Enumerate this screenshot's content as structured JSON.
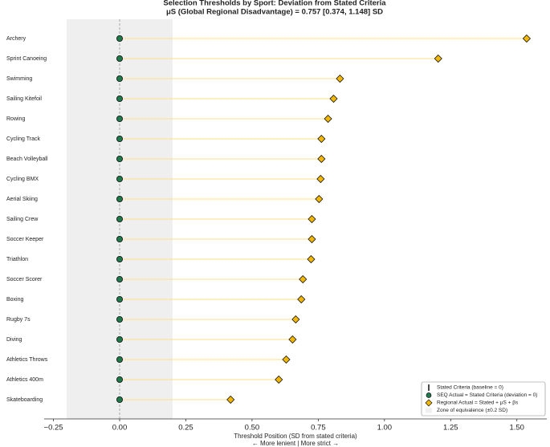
{
  "chart_data": {
    "type": "dot",
    "title": "Selection Thresholds by Sport: Deviation from Stated Criteria",
    "subtitle": "μS (Global Regional Disadvantage) = 0.757 [0.374, 1.148] SD",
    "xlabel": "Threshold Position (SD from stated criteria)",
    "xlabel2": "← More lenient | More strict →",
    "categories": [
      "Archery",
      "Sprint Canoeing",
      "Swimming",
      "Sailing Kitefoil",
      "Rowing",
      "Cycling Track",
      "Beach Volleyball",
      "Cycling BMX",
      "Aerial Skiing",
      "Sailing Crew",
      "Soccer Keeper",
      "Triathlon",
      "Soccer Scorer",
      "Boxing",
      "Rugby 7s",
      "Diving",
      "Athletics Throws",
      "Athletics 400m",
      "Skateboarding"
    ],
    "series": [
      {
        "name": "SEQ Actual = Stated Criteria (deviation = 0)",
        "color": "#1e7a4a",
        "values": [
          0,
          0,
          0,
          0,
          0,
          0,
          0,
          0,
          0,
          0,
          0,
          0,
          0,
          0,
          0,
          0,
          0,
          0,
          0
        ]
      },
      {
        "name": "Regional Actual = Stated + μS + βs",
        "color": "#f2b705",
        "values": [
          1.537,
          1.203,
          0.832,
          0.808,
          0.787,
          0.762,
          0.762,
          0.759,
          0.753,
          0.726,
          0.726,
          0.723,
          0.692,
          0.686,
          0.665,
          0.653,
          0.629,
          0.601,
          0.419
        ]
      }
    ],
    "baseline": {
      "name": "Stated Criteria (baseline = 0)",
      "value": 0,
      "color": "#999999"
    },
    "zone": {
      "name": "Zone of equivalence (±0.2 SD)",
      "range": [
        -0.2,
        0.2
      ],
      "color": "#efefef"
    },
    "xlim": [
      -0.285,
      1.613
    ],
    "xticks": [
      {
        "value": -0.25,
        "label": "−0.25"
      },
      {
        "value": 0,
        "label": "0.00"
      },
      {
        "value": 0.25,
        "label": "0.25"
      },
      {
        "value": 0.5,
        "label": "0.50"
      },
      {
        "value": 0.75,
        "label": "0.75"
      },
      {
        "value": 1,
        "label": "1.00"
      },
      {
        "value": 1.25,
        "label": "1.25"
      },
      {
        "value": 1.5,
        "label": "1.50"
      }
    ],
    "legend": "lower right"
  }
}
